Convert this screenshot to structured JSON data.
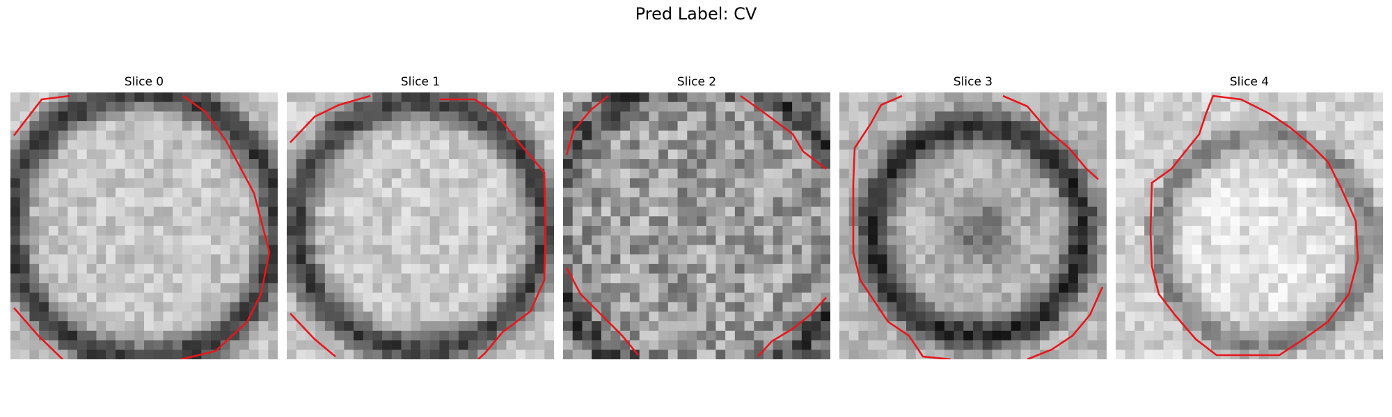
{
  "figure": {
    "title": "Pred Label: CV",
    "panels": [
      {
        "title": "Slice 0"
      },
      {
        "title": "Slice 1"
      },
      {
        "title": "Slice 2"
      },
      {
        "title": "Slice 3"
      },
      {
        "title": "Slice 4"
      }
    ],
    "contour_color": "#e8161b"
  }
}
